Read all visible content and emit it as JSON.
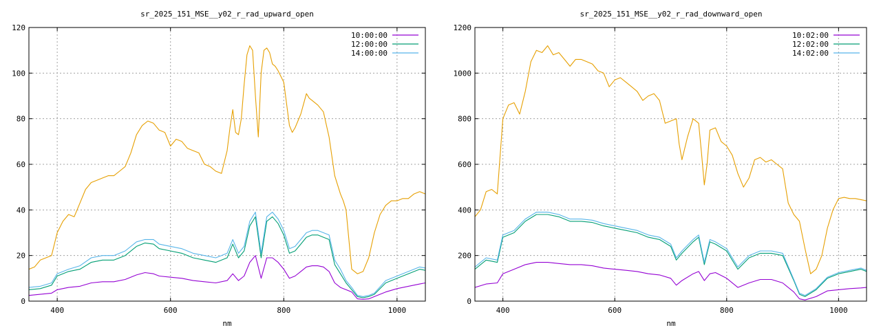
{
  "chart_data": [
    {
      "type": "line",
      "title": "sr_2025_151_MSE__y02_r_rad_upward_open",
      "xlabel": "nm",
      "ylabel": "",
      "xlim": [
        350,
        1050
      ],
      "ylim": [
        0,
        120
      ],
      "xticks": [
        400,
        600,
        800,
        1000
      ],
      "yticks": [
        0,
        20,
        40,
        60,
        80,
        100,
        120
      ],
      "grid": true,
      "legend_position": "top-right",
      "series": [
        {
          "name": "10:00:00",
          "color": "#9400d3",
          "x": [
            350,
            370,
            390,
            400,
            420,
            440,
            460,
            480,
            500,
            520,
            540,
            555,
            570,
            580,
            600,
            620,
            640,
            660,
            680,
            700,
            710,
            720,
            730,
            740,
            750,
            760,
            770,
            780,
            790,
            800,
            810,
            820,
            830,
            840,
            850,
            860,
            870,
            880,
            890,
            900,
            910,
            920,
            930,
            940,
            950,
            960,
            980,
            1000,
            1020,
            1040,
            1050
          ],
          "y": [
            2.5,
            3,
            3.5,
            5,
            6,
            6.5,
            8,
            8.5,
            8.5,
            9.5,
            11.5,
            12.5,
            12,
            11,
            10.5,
            10,
            9,
            8.5,
            8,
            9,
            12,
            9,
            11,
            17,
            20,
            10,
            19,
            19,
            17,
            14,
            10,
            11,
            13,
            15,
            15.5,
            15.5,
            15,
            13,
            8,
            6,
            5,
            4,
            1,
            0.8,
            1,
            2,
            4,
            5.5,
            6.5,
            7.5,
            8
          ]
        },
        {
          "name": "12:00:00",
          "color": "#009e73",
          "x": [
            350,
            370,
            390,
            400,
            420,
            440,
            460,
            480,
            500,
            520,
            540,
            555,
            570,
            580,
            600,
            620,
            640,
            660,
            680,
            700,
            710,
            720,
            730,
            740,
            750,
            760,
            770,
            780,
            790,
            800,
            810,
            820,
            830,
            840,
            850,
            860,
            870,
            880,
            890,
            900,
            910,
            920,
            930,
            940,
            950,
            960,
            980,
            1000,
            1020,
            1040,
            1050
          ],
          "y": [
            5,
            5.5,
            7,
            11,
            13,
            14,
            17,
            18,
            18,
            20,
            24,
            25.5,
            25,
            23,
            22,
            21,
            19,
            18,
            17,
            19,
            25,
            19,
            22,
            33,
            37,
            19,
            35,
            37,
            34,
            29,
            21,
            22,
            25,
            28,
            29,
            29,
            28,
            27,
            16,
            12,
            8,
            5,
            2,
            1.5,
            2,
            3,
            8,
            10,
            12,
            14,
            13.5
          ]
        },
        {
          "name": "14:00:00",
          "color": "#56b4e9",
          "x": [
            350,
            370,
            390,
            400,
            420,
            440,
            460,
            480,
            500,
            520,
            540,
            555,
            570,
            580,
            600,
            620,
            640,
            660,
            680,
            700,
            710,
            720,
            730,
            740,
            750,
            760,
            770,
            780,
            790,
            800,
            810,
            820,
            830,
            840,
            850,
            860,
            870,
            880,
            890,
            900,
            910,
            920,
            930,
            940,
            950,
            960,
            980,
            1000,
            1020,
            1040,
            1050
          ],
          "y": [
            6,
            6.5,
            8,
            12,
            14,
            15.5,
            19,
            20,
            20,
            22,
            26,
            27,
            27,
            25,
            24,
            23,
            21,
            20,
            19,
            21,
            27,
            21,
            24,
            35,
            39,
            21,
            37,
            39,
            36,
            31,
            23,
            24,
            27,
            30,
            31,
            31,
            30,
            29,
            18,
            14,
            9,
            6,
            2.5,
            2,
            2.5,
            3.5,
            9,
            11,
            13,
            15,
            14.5
          ]
        },
        {
          "name": "",
          "color": "#e69f00",
          "x": [
            350,
            360,
            370,
            380,
            390,
            400,
            410,
            420,
            430,
            440,
            450,
            460,
            470,
            480,
            490,
            500,
            510,
            520,
            530,
            540,
            550,
            560,
            570,
            580,
            590,
            600,
            610,
            620,
            630,
            640,
            650,
            660,
            670,
            680,
            690,
            700,
            705,
            710,
            715,
            720,
            725,
            730,
            735,
            740,
            745,
            750,
            755,
            760,
            765,
            770,
            775,
            780,
            785,
            790,
            800,
            810,
            815,
            820,
            830,
            840,
            845,
            850,
            860,
            870,
            880,
            890,
            900,
            905,
            910,
            920,
            930,
            940,
            950,
            960,
            970,
            980,
            990,
            1000,
            1010,
            1020,
            1030,
            1040,
            1050
          ],
          "y": [
            14,
            15,
            18,
            19,
            20,
            30,
            35,
            38,
            37,
            43,
            49,
            52,
            53,
            54,
            55,
            55,
            57,
            59,
            65,
            73,
            77,
            79,
            78,
            75,
            74,
            68,
            71,
            70,
            67,
            66,
            65,
            60,
            59,
            57,
            56,
            66,
            76,
            84,
            74,
            73,
            80,
            95,
            108,
            112,
            110,
            90,
            72,
            100,
            110,
            111,
            109,
            104,
            103,
            101,
            96,
            77,
            74,
            76,
            82,
            91,
            89,
            88,
            86,
            83,
            72,
            55,
            47,
            44,
            40,
            14,
            12,
            13,
            19,
            30,
            38,
            42,
            44,
            44,
            45,
            45,
            47,
            48,
            47
          ]
        }
      ]
    },
    {
      "type": "line",
      "title": "sr_2025_151_MSE__y02_r_rad_downward_open",
      "xlabel": "nm",
      "ylabel": "",
      "xlim": [
        350,
        1050
      ],
      "ylim": [
        0,
        1200
      ],
      "xticks": [
        400,
        600,
        800,
        1000
      ],
      "yticks": [
        0,
        200,
        400,
        600,
        800,
        1000,
        1200
      ],
      "grid": true,
      "legend_position": "top-right",
      "series": [
        {
          "name": "10:02:00",
          "color": "#9400d3",
          "x": [
            350,
            370,
            390,
            400,
            420,
            440,
            460,
            480,
            500,
            520,
            540,
            560,
            580,
            600,
            620,
            640,
            660,
            680,
            700,
            710,
            720,
            740,
            750,
            760,
            770,
            780,
            800,
            820,
            840,
            860,
            880,
            900,
            920,
            930,
            940,
            960,
            980,
            1000,
            1020,
            1040,
            1050
          ],
          "y": [
            60,
            75,
            80,
            120,
            140,
            160,
            170,
            170,
            165,
            160,
            160,
            155,
            145,
            140,
            135,
            130,
            120,
            115,
            100,
            70,
            90,
            120,
            130,
            90,
            120,
            125,
            100,
            60,
            80,
            95,
            95,
            80,
            40,
            10,
            5,
            20,
            45,
            50,
            55,
            58,
            60
          ]
        },
        {
          "name": "12:02:00",
          "color": "#009e73",
          "x": [
            350,
            370,
            390,
            400,
            420,
            440,
            460,
            480,
            500,
            520,
            540,
            560,
            580,
            600,
            620,
            640,
            660,
            680,
            700,
            710,
            720,
            740,
            750,
            760,
            770,
            780,
            800,
            820,
            840,
            860,
            880,
            900,
            920,
            930,
            940,
            960,
            980,
            1000,
            1020,
            1040,
            1050
          ],
          "y": [
            140,
            180,
            170,
            280,
            300,
            350,
            380,
            380,
            370,
            350,
            350,
            345,
            330,
            320,
            310,
            300,
            280,
            270,
            240,
            180,
            210,
            260,
            280,
            160,
            260,
            250,
            220,
            140,
            190,
            210,
            210,
            200,
            90,
            30,
            20,
            50,
            100,
            120,
            130,
            140,
            130
          ]
        },
        {
          "name": "14:02:00",
          "color": "#56b4e9",
          "x": [
            350,
            370,
            390,
            400,
            420,
            440,
            460,
            480,
            500,
            520,
            540,
            560,
            580,
            600,
            620,
            640,
            660,
            680,
            700,
            710,
            720,
            740,
            750,
            760,
            770,
            780,
            800,
            820,
            840,
            860,
            880,
            900,
            920,
            930,
            940,
            960,
            980,
            1000,
            1020,
            1040,
            1050
          ],
          "y": [
            150,
            190,
            180,
            290,
            310,
            360,
            390,
            390,
            380,
            360,
            360,
            355,
            340,
            330,
            320,
            310,
            290,
            280,
            250,
            190,
            220,
            270,
            290,
            170,
            270,
            260,
            230,
            150,
            200,
            220,
            220,
            210,
            95,
            35,
            25,
            55,
            105,
            125,
            135,
            145,
            135
          ]
        },
        {
          "name": "",
          "color": "#e69f00",
          "x": [
            350,
            360,
            370,
            380,
            390,
            400,
            410,
            420,
            430,
            440,
            450,
            460,
            470,
            480,
            490,
            500,
            510,
            520,
            530,
            540,
            550,
            560,
            570,
            580,
            590,
            600,
            610,
            620,
            630,
            640,
            650,
            660,
            670,
            680,
            690,
            700,
            710,
            715,
            720,
            730,
            740,
            750,
            755,
            760,
            765,
            770,
            780,
            790,
            800,
            810,
            820,
            830,
            840,
            850,
            860,
            870,
            880,
            890,
            900,
            910,
            920,
            930,
            940,
            950,
            960,
            970,
            980,
            990,
            1000,
            1010,
            1020,
            1030,
            1040,
            1050
          ],
          "y": [
            370,
            400,
            480,
            490,
            470,
            800,
            860,
            870,
            820,
            920,
            1050,
            1100,
            1090,
            1120,
            1080,
            1090,
            1060,
            1030,
            1060,
            1060,
            1050,
            1040,
            1010,
            1000,
            940,
            970,
            980,
            960,
            940,
            920,
            880,
            900,
            910,
            880,
            780,
            790,
            800,
            690,
            620,
            720,
            800,
            780,
            650,
            510,
            600,
            750,
            760,
            700,
            680,
            640,
            560,
            500,
            540,
            620,
            630,
            610,
            620,
            600,
            580,
            430,
            380,
            350,
            230,
            120,
            140,
            200,
            320,
            400,
            450,
            455,
            450,
            450,
            445,
            440
          ]
        }
      ]
    }
  ]
}
